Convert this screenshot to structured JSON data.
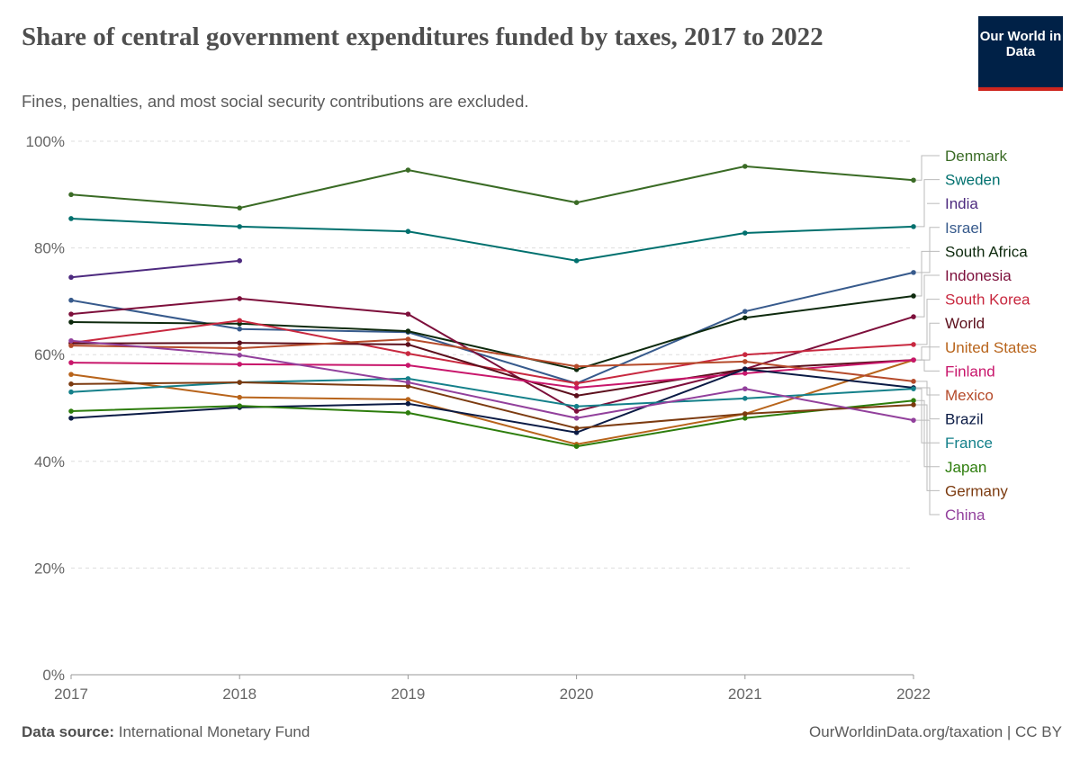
{
  "header": {
    "title": "Share of central government expenditures funded by taxes, 2017 to 2022",
    "subtitle": "Fines, penalties, and most social security contributions are excluded.",
    "logo": "Our World in Data"
  },
  "footer": {
    "source_label": "Data source:",
    "source": "International Monetary Fund",
    "link": "OurWorldinData.org/taxation | CC BY"
  },
  "chart_data": {
    "type": "line",
    "title": "Share of central government expenditures funded by taxes, 2017 to 2022",
    "x": [
      2017,
      2018,
      2019,
      2020,
      2021,
      2022
    ],
    "x_tick_labels": [
      "2017",
      "2018",
      "2019",
      "2020",
      "2021",
      "2022"
    ],
    "y_tick_labels": [
      "0%",
      "20%",
      "40%",
      "60%",
      "80%",
      "100%"
    ],
    "ylim": [
      0,
      100
    ],
    "y_unit": "%",
    "grid": "horizontal dashed",
    "legend": "right, line-end labels",
    "series": [
      {
        "name": "Denmark",
        "color": "#3a6b25",
        "values": [
          90.0,
          87.5,
          94.6,
          88.5,
          95.3,
          92.7
        ]
      },
      {
        "name": "Sweden",
        "color": "#00706e",
        "values": [
          85.5,
          84.0,
          83.1,
          77.6,
          82.8,
          84.0
        ]
      },
      {
        "name": "India",
        "color": "#4d2a7f",
        "values": [
          74.5,
          77.6,
          null,
          null,
          null,
          null
        ]
      },
      {
        "name": "Israel",
        "color": "#375a8c",
        "values": [
          70.2,
          64.8,
          64.2,
          54.6,
          68.1,
          75.4
        ]
      },
      {
        "name": "South Africa",
        "color": "#0e2a0e",
        "values": [
          66.1,
          65.8,
          64.4,
          57.2,
          66.9,
          71.0
        ]
      },
      {
        "name": "Indonesia",
        "color": "#7d0f3b",
        "values": [
          67.6,
          70.5,
          67.6,
          49.4,
          57.3,
          67.1
        ]
      },
      {
        "name": "South Korea",
        "color": "#c8283f",
        "values": [
          62.2,
          66.4,
          60.2,
          54.6,
          60.0,
          61.9
        ]
      },
      {
        "name": "World",
        "color": "#5c0f1c",
        "values": [
          62.1,
          62.2,
          61.9,
          52.3,
          57.3,
          59.0
        ]
      },
      {
        "name": "United States",
        "color": "#b8641b",
        "values": [
          56.3,
          52.0,
          51.6,
          43.2,
          48.9,
          59.0
        ]
      },
      {
        "name": "Finland",
        "color": "#c8166b",
        "values": [
          58.5,
          58.2,
          58.0,
          53.8,
          56.5,
          59.0
        ]
      },
      {
        "name": "Mexico",
        "color": "#b54a2a",
        "values": [
          61.7,
          61.2,
          62.9,
          57.8,
          58.7,
          55.0
        ]
      },
      {
        "name": "Brazil",
        "color": "#0b1b45",
        "values": [
          48.1,
          50.1,
          50.8,
          45.4,
          57.3,
          53.8
        ]
      },
      {
        "name": "France",
        "color": "#14808a",
        "values": [
          53.0,
          54.8,
          55.5,
          50.3,
          51.8,
          53.6
        ]
      },
      {
        "name": "Japan",
        "color": "#2d7d0c",
        "values": [
          49.4,
          50.4,
          49.1,
          42.8,
          48.1,
          51.4
        ]
      },
      {
        "name": "Germany",
        "color": "#7c3b10",
        "values": [
          54.5,
          54.8,
          54.1,
          46.2,
          48.9,
          50.6
        ]
      },
      {
        "name": "China",
        "color": "#92409c",
        "values": [
          62.6,
          59.9,
          54.8,
          48.1,
          53.6,
          47.7
        ]
      }
    ]
  }
}
